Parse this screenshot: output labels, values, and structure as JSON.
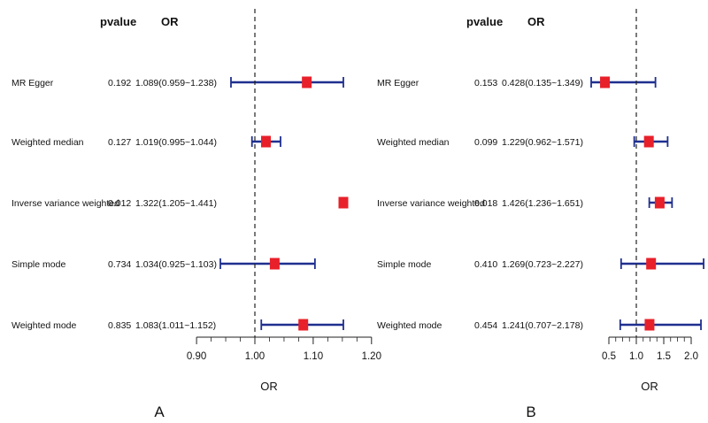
{
  "chart_data": [
    {
      "type": "forest",
      "panel_label": "A",
      "header_pvalue": "pvalue",
      "header_or": "OR",
      "xlabel": "OR",
      "reference_line": 1.0,
      "ticks": [
        "0.90",
        "1.00",
        "1.10",
        "1.20"
      ],
      "tick_values": [
        0.9,
        1.0,
        1.1,
        1.2
      ],
      "xlim": [
        0.9,
        1.25
      ],
      "rows": [
        {
          "method": "MR Egger",
          "pvalue": "0.192",
          "or_text": "1.089(0.959~1.238)",
          "or": 1.089,
          "lo": 0.959,
          "hi": 1.238
        },
        {
          "method": "Weighted median",
          "pvalue": "0.127",
          "or_text": "1.019(0.995~1.044)",
          "or": 1.019,
          "lo": 0.995,
          "hi": 1.044
        },
        {
          "method": "Inverse variance weighted",
          "pvalue": "0.012",
          "or_text": "1.322(1.205~1.441)",
          "or": 1.322,
          "lo": 1.205,
          "hi": 1.441
        },
        {
          "method": "Simple mode",
          "pvalue": "0.734",
          "or_text": "1.034(0.925~1.103)",
          "or": 1.034,
          "lo": 0.925,
          "hi": 1.103
        },
        {
          "method": "Weighted mode",
          "pvalue": "0.835",
          "or_text": "1.083(1.011~1.152)",
          "or": 1.083,
          "lo": 1.011,
          "hi": 1.152
        }
      ]
    },
    {
      "type": "forest",
      "panel_label": "B",
      "header_pvalue": "pvalue",
      "header_or": "OR",
      "xlabel": "OR",
      "reference_line": 1.0,
      "ticks": [
        "0.5",
        "1.0",
        "1.5",
        "2.0"
      ],
      "tick_values": [
        0.5,
        1.0,
        1.5,
        2.0
      ],
      "xlim": [
        0.5,
        2.0
      ],
      "rows": [
        {
          "method": "MR Egger",
          "pvalue": "0.153",
          "or_text": "0.428(0.135~1.349)",
          "or": 0.428,
          "lo": 0.135,
          "hi": 1.349
        },
        {
          "method": "Weighted median",
          "pvalue": "0.099",
          "or_text": "1.229(0.962~1.571)",
          "or": 1.229,
          "lo": 0.962,
          "hi": 1.571
        },
        {
          "method": "Inverse variance weighted",
          "pvalue": "0.018",
          "or_text": "1.426(1.236~1.651)",
          "or": 1.426,
          "lo": 1.236,
          "hi": 1.651
        },
        {
          "method": "Simple mode",
          "pvalue": "0.410",
          "or_text": "1.269(0.723~2.227)",
          "or": 1.269,
          "lo": 0.723,
          "hi": 2.227
        },
        {
          "method": "Weighted mode",
          "pvalue": "0.454",
          "or_text": "1.241(0.707~2.178)",
          "or": 1.241,
          "lo": 0.707,
          "hi": 2.178
        }
      ]
    }
  ],
  "colors": {
    "interval": "#1f2f8f",
    "point": "#e8202a",
    "reference": "#222222",
    "text": "#111111"
  }
}
